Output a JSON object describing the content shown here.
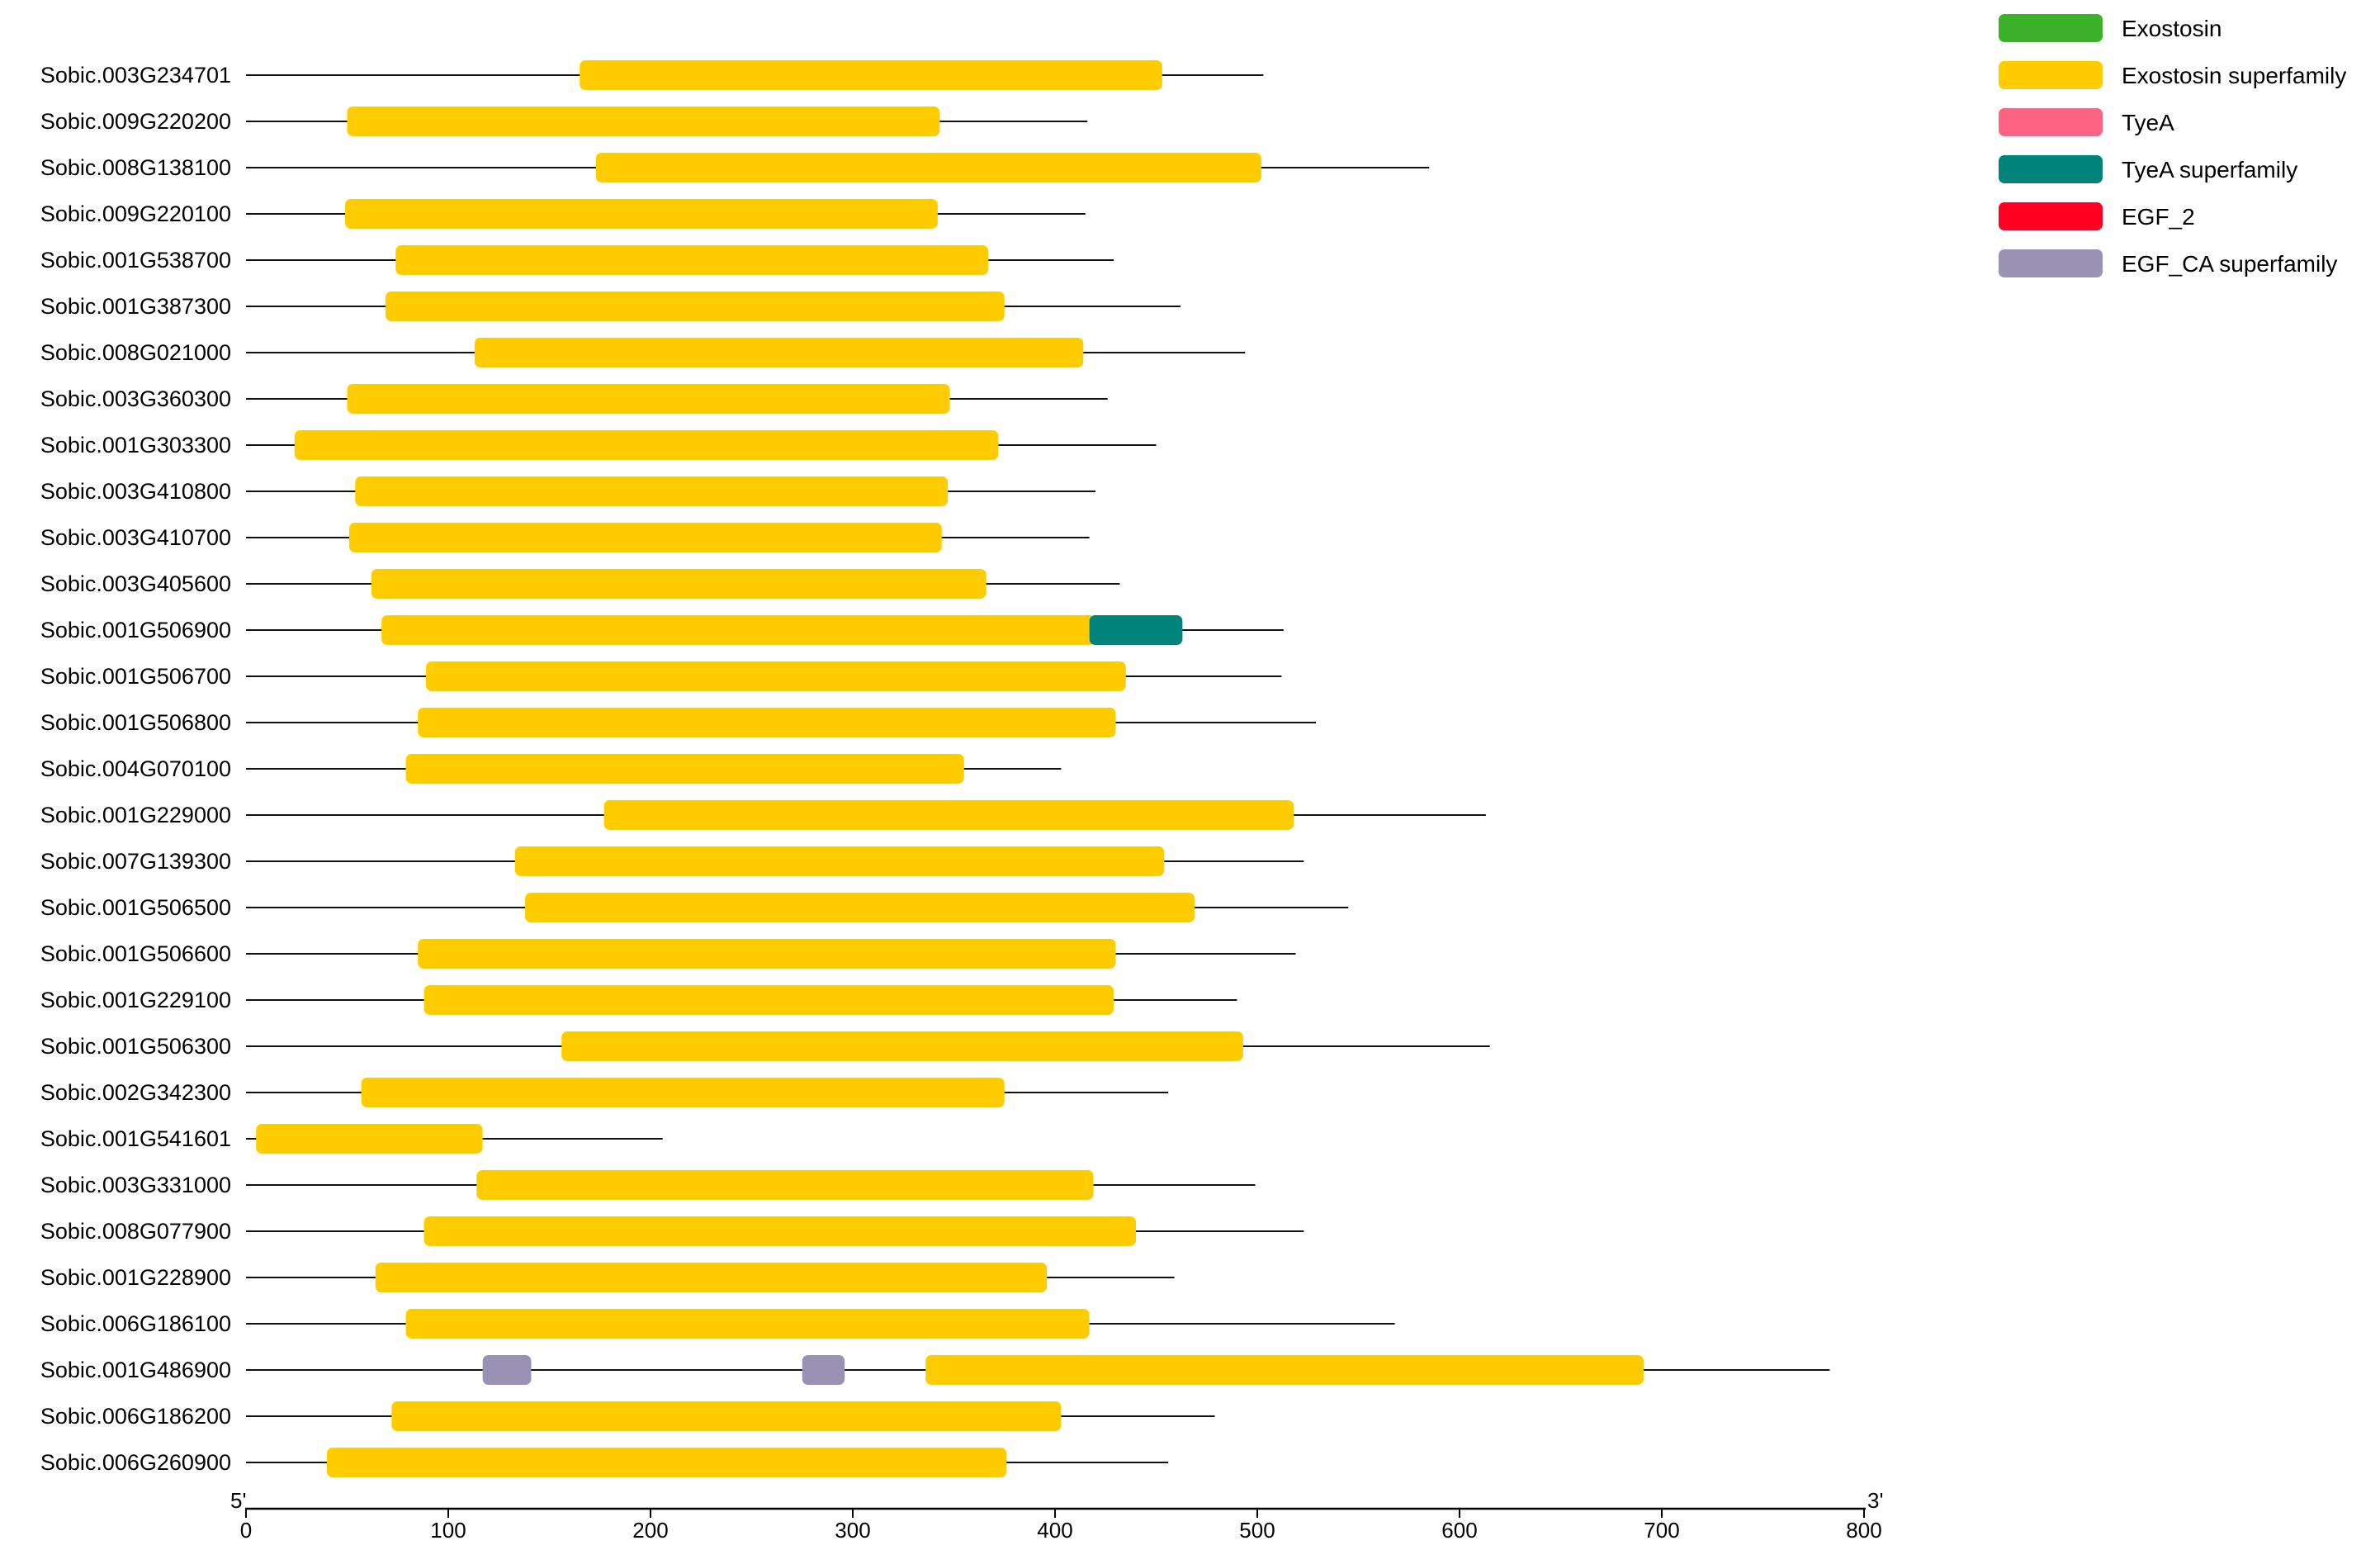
{
  "legend": [
    {
      "name": "Exostosin",
      "color": "#3cb22b"
    },
    {
      "name": "Exostosin superfamily",
      "color": "#ffcc00"
    },
    {
      "name": "TyeA",
      "color": "#ff6384"
    },
    {
      "name": "TyeA superfamily",
      "color": "#00837a"
    },
    {
      "name": "EGF_2",
      "color": "#ff0022"
    },
    {
      "name": "EGF_CA superfamily",
      "color": "#9a92b4"
    }
  ],
  "axis": {
    "start_label": "5'",
    "end_label": "3'",
    "min": 0,
    "max": 800,
    "ticks": [
      "0",
      "100",
      "200",
      "300",
      "400",
      "500",
      "600",
      "700",
      "800"
    ]
  },
  "genes": [
    {
      "id": "Sobic.003G234701",
      "length": 503,
      "domains": [
        {
          "type": "Exostosin superfamily",
          "start": 165,
          "end": 453
        }
      ]
    },
    {
      "id": "Sobic.009G220200",
      "length": 416,
      "domains": [
        {
          "type": "Exostosin superfamily",
          "start": 50,
          "end": 343
        }
      ]
    },
    {
      "id": "Sobic.008G138100",
      "length": 585,
      "domains": [
        {
          "type": "Exostosin superfamily",
          "start": 173,
          "end": 502
        }
      ]
    },
    {
      "id": "Sobic.009G220100",
      "length": 415,
      "domains": [
        {
          "type": "Exostosin superfamily",
          "start": 49,
          "end": 342
        }
      ]
    },
    {
      "id": "Sobic.001G538700",
      "length": 429,
      "domains": [
        {
          "type": "Exostosin superfamily",
          "start": 74,
          "end": 367
        }
      ]
    },
    {
      "id": "Sobic.001G387300",
      "length": 462,
      "domains": [
        {
          "type": "Exostosin superfamily",
          "start": 69,
          "end": 375
        }
      ]
    },
    {
      "id": "Sobic.008G021000",
      "length": 494,
      "domains": [
        {
          "type": "Exostosin superfamily",
          "start": 113,
          "end": 414
        }
      ]
    },
    {
      "id": "Sobic.003G360300",
      "length": 426,
      "domains": [
        {
          "type": "Exostosin superfamily",
          "start": 50,
          "end": 348
        }
      ]
    },
    {
      "id": "Sobic.001G303300",
      "length": 450,
      "domains": [
        {
          "type": "Exostosin superfamily",
          "start": 24,
          "end": 372
        }
      ]
    },
    {
      "id": "Sobic.003G410800",
      "length": 420,
      "domains": [
        {
          "type": "Exostosin superfamily",
          "start": 54,
          "end": 347
        }
      ]
    },
    {
      "id": "Sobic.003G410700",
      "length": 417,
      "domains": [
        {
          "type": "Exostosin superfamily",
          "start": 51,
          "end": 344
        }
      ]
    },
    {
      "id": "Sobic.003G405600",
      "length": 432,
      "domains": [
        {
          "type": "Exostosin superfamily",
          "start": 62,
          "end": 366
        }
      ]
    },
    {
      "id": "Sobic.001G506900",
      "length": 513,
      "domains": [
        {
          "type": "Exostosin superfamily",
          "start": 67,
          "end": 420
        },
        {
          "type": "TyeA superfamily",
          "start": 417,
          "end": 463
        }
      ]
    },
    {
      "id": "Sobic.001G506700",
      "length": 512,
      "domains": [
        {
          "type": "Exostosin superfamily",
          "start": 89,
          "end": 435
        }
      ]
    },
    {
      "id": "Sobic.001G506800",
      "length": 529,
      "domains": [
        {
          "type": "Exostosin superfamily",
          "start": 85,
          "end": 430
        }
      ]
    },
    {
      "id": "Sobic.004G070100",
      "length": 403,
      "domains": [
        {
          "type": "Exostosin superfamily",
          "start": 79,
          "end": 355
        }
      ]
    },
    {
      "id": "Sobic.001G229000",
      "length": 613,
      "domains": [
        {
          "type": "Exostosin superfamily",
          "start": 177,
          "end": 518
        }
      ]
    },
    {
      "id": "Sobic.007G139300",
      "length": 523,
      "domains": [
        {
          "type": "Exostosin superfamily",
          "start": 133,
          "end": 454
        }
      ]
    },
    {
      "id": "Sobic.001G506500",
      "length": 545,
      "domains": [
        {
          "type": "Exostosin superfamily",
          "start": 138,
          "end": 469
        }
      ]
    },
    {
      "id": "Sobic.001G506600",
      "length": 519,
      "domains": [
        {
          "type": "Exostosin superfamily",
          "start": 85,
          "end": 430
        }
      ]
    },
    {
      "id": "Sobic.001G229100",
      "length": 490,
      "domains": [
        {
          "type": "Exostosin superfamily",
          "start": 88,
          "end": 429
        }
      ]
    },
    {
      "id": "Sobic.001G506300",
      "length": 615,
      "domains": [
        {
          "type": "Exostosin superfamily",
          "start": 156,
          "end": 493
        }
      ]
    },
    {
      "id": "Sobic.002G342300",
      "length": 456,
      "domains": [
        {
          "type": "Exostosin superfamily",
          "start": 57,
          "end": 375
        }
      ]
    },
    {
      "id": "Sobic.001G541601",
      "length": 206,
      "domains": [
        {
          "type": "Exostosin superfamily",
          "start": 5,
          "end": 117
        }
      ]
    },
    {
      "id": "Sobic.003G331000",
      "length": 499,
      "domains": [
        {
          "type": "Exostosin superfamily",
          "start": 114,
          "end": 419
        }
      ]
    },
    {
      "id": "Sobic.008G077900",
      "length": 523,
      "domains": [
        {
          "type": "Exostosin superfamily",
          "start": 88,
          "end": 440
        }
      ]
    },
    {
      "id": "Sobic.001G228900",
      "length": 459,
      "domains": [
        {
          "type": "Exostosin superfamily",
          "start": 64,
          "end": 396
        }
      ]
    },
    {
      "id": "Sobic.006G186100",
      "length": 568,
      "domains": [
        {
          "type": "Exostosin superfamily",
          "start": 79,
          "end": 417
        }
      ]
    },
    {
      "id": "Sobic.001G486900",
      "length": 783,
      "domains": [
        {
          "type": "EGF_CA superfamily",
          "start": 117,
          "end": 141
        },
        {
          "type": "EGF_CA superfamily",
          "start": 275,
          "end": 296
        },
        {
          "type": "Exostosin superfamily",
          "start": 336,
          "end": 691
        }
      ]
    },
    {
      "id": "Sobic.006G186200",
      "length": 479,
      "domains": [
        {
          "type": "Exostosin superfamily",
          "start": 72,
          "end": 403
        }
      ]
    },
    {
      "id": "Sobic.006G260900",
      "length": 456,
      "domains": [
        {
          "type": "Exostosin superfamily",
          "start": 40,
          "end": 376
        }
      ]
    }
  ]
}
